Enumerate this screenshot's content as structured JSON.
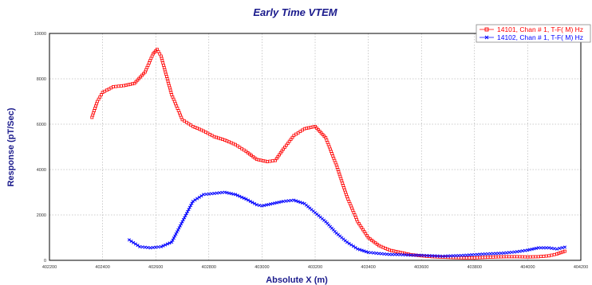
{
  "chart_data": {
    "type": "scatter",
    "title": "Early Time VTEM",
    "xlabel": "Absolute X (m)",
    "ylabel": "Response (pT/Sec)",
    "xlim": [
      402200,
      404200
    ],
    "ylim": [
      0,
      10000
    ],
    "x_ticks": [
      402200,
      402400,
      402600,
      402800,
      403000,
      403200,
      403400,
      403600,
      403800,
      404000,
      404200
    ],
    "y_ticks": [
      0,
      2000,
      4000,
      6000,
      8000,
      10000
    ],
    "x_tick_labels": [
      "402200",
      "402400",
      "402600",
      "402800",
      "403000",
      "403200",
      "403400",
      "403600",
      "403800",
      "404000",
      "404200"
    ],
    "y_tick_labels": [
      "0",
      "2000",
      "4000",
      "6000",
      "8000",
      "10000"
    ],
    "grid": true,
    "legend_position": "top-right",
    "series": [
      {
        "name": "14101, Chan # 1, T-F( M) Hz",
        "color": "#ff0000",
        "marker": "square",
        "x": [
          402360,
          402380,
          402400,
          402440,
          402480,
          402520,
          402560,
          402590,
          402605,
          402620,
          402660,
          402700,
          402740,
          402780,
          402820,
          402860,
          402900,
          402940,
          402980,
          403020,
          403050,
          403080,
          403120,
          403160,
          403200,
          403240,
          403280,
          403320,
          403360,
          403400,
          403440,
          403480,
          403520,
          403560,
          403600,
          403640,
          403680,
          403720,
          403760,
          403800,
          403840,
          403880,
          403920,
          403960,
          404000,
          404040,
          404080,
          404110,
          404140
        ],
        "y": [
          6300,
          7000,
          7400,
          7650,
          7700,
          7800,
          8300,
          9100,
          9300,
          9000,
          7300,
          6200,
          5900,
          5700,
          5450,
          5300,
          5100,
          4800,
          4450,
          4350,
          4400,
          4900,
          5500,
          5800,
          5900,
          5400,
          4200,
          2800,
          1700,
          1000,
          650,
          450,
          350,
          250,
          200,
          160,
          140,
          120,
          110,
          110,
          130,
          150,
          160,
          160,
          150,
          160,
          200,
          280,
          400
        ]
      },
      {
        "name": "14102, Chan # 1, T-F( M) Hz",
        "color": "#0000ff",
        "marker": "x",
        "x": [
          402500,
          402540,
          402580,
          402620,
          402660,
          402700,
          402740,
          402780,
          402820,
          402860,
          402900,
          402940,
          402980,
          403000,
          403040,
          403080,
          403120,
          403160,
          403200,
          403240,
          403280,
          403320,
          403360,
          403400,
          403440,
          403480,
          403520,
          403560,
          403600,
          403640,
          403680,
          403720,
          403760,
          403800,
          403840,
          403880,
          403920,
          403960,
          404000,
          404040,
          404080,
          404110,
          404140
        ],
        "y": [
          900,
          600,
          550,
          600,
          800,
          1700,
          2600,
          2900,
          2950,
          3000,
          2900,
          2700,
          2450,
          2400,
          2500,
          2600,
          2650,
          2500,
          2100,
          1700,
          1200,
          800,
          500,
          350,
          300,
          260,
          250,
          230,
          220,
          200,
          180,
          200,
          220,
          250,
          280,
          300,
          330,
          380,
          450,
          550,
          550,
          500,
          580
        ]
      }
    ]
  }
}
